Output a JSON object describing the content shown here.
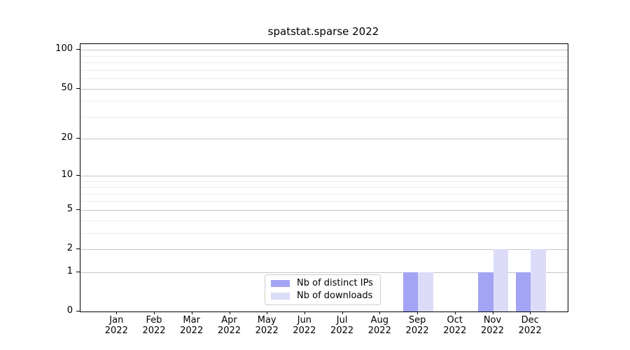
{
  "title": "spatstat.sparse 2022",
  "chart_data": {
    "type": "bar",
    "title": "spatstat.sparse 2022",
    "categories": [
      "Jan",
      "Feb",
      "Mar",
      "Apr",
      "May",
      "Jun",
      "Jul",
      "Aug",
      "Sep",
      "Oct",
      "Nov",
      "Dec"
    ],
    "year_label": "2022",
    "series": [
      {
        "name": "Nb of distinct IPs",
        "color": "#a4a4f4",
        "values": [
          0,
          0,
          0,
          0,
          0,
          0,
          0,
          0,
          1,
          0,
          1,
          1
        ]
      },
      {
        "name": "Nb of downloads",
        "color": "#dcdcf9",
        "values": [
          0,
          0,
          0,
          0,
          0,
          0,
          0,
          0,
          1,
          0,
          2,
          2
        ]
      }
    ],
    "y_scale": "log1p",
    "y_major_ticks": [
      0,
      1,
      2,
      5,
      10,
      20,
      50,
      100
    ],
    "y_minor_gridlines": [
      3,
      4,
      6,
      7,
      8,
      9,
      30,
      40,
      60,
      70,
      80,
      90
    ],
    "ylim": [
      0,
      110.5
    ],
    "grid": "on",
    "legend_position": "lower-center",
    "xlabel": "",
    "ylabel": ""
  },
  "colors": {
    "major_grid": "#c6c6c6",
    "minor_grid": "#ececec",
    "axis": "#000000",
    "legend_border": "#cccccc",
    "background": "#ffffff"
  }
}
